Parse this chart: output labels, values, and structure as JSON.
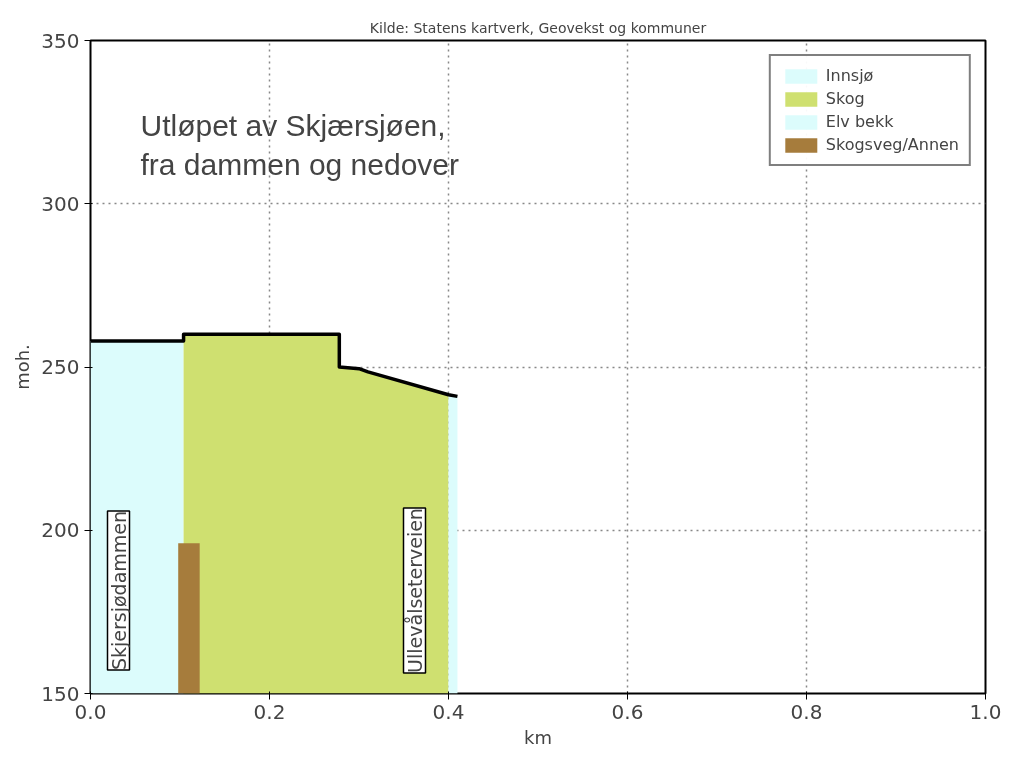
{
  "chart_data": {
    "type": "area",
    "title": "Kilde: Statens kartverk, Geovekst og kommuner",
    "xlabel": "km",
    "ylabel": "moh.",
    "annotations": [
      "Utløpet av Skjærsjøen,\nfra dammen og nedover",
      "Skjersjødammen",
      "Ullevålseterveien"
    ],
    "series": [
      {
        "name": "Innsjø",
        "color": "#dcfcfc",
        "x": [
          0,
          0.104
        ],
        "values": [
          258,
          258
        ]
      },
      {
        "name": "Skog",
        "color": "#cfe070",
        "x": [
          0.104,
          0.278,
          0.278,
          0.3,
          0.31,
          0.4
        ],
        "values": [
          260,
          260,
          250,
          249.5,
          248.5,
          241.5
        ]
      },
      {
        "name": "Elv bekk",
        "color": "#dcfcfc",
        "x": [
          0.4,
          0.41
        ],
        "values": [
          241.5,
          241
        ]
      },
      {
        "name": "Skogsveg/Annen",
        "color": "#a67c3c",
        "x": [
          0.098,
          0.122
        ],
        "values": [
          196,
          196
        ]
      },
      {
        "type": "line",
        "color": "#000000",
        "x": [
          0,
          0.104,
          0.104,
          0.278,
          0.278,
          0.3,
          0.31,
          0.4,
          0.41
        ],
        "values": [
          258,
          258,
          260,
          260,
          250,
          249.5,
          248.5,
          241.5,
          241
        ]
      }
    ],
    "xlim": [
      0,
      1
    ],
    "ylim": [
      150,
      350
    ],
    "xticks": [
      {
        "value": 0,
        "label": "0.0"
      },
      0.2,
      0.4,
      0.6,
      0.8,
      {
        "value": 1,
        "label": "1.0"
      }
    ],
    "yticks": [
      150,
      200,
      250,
      300,
      350
    ],
    "grid": true,
    "legend": "top right",
    "line_style": "solid"
  }
}
